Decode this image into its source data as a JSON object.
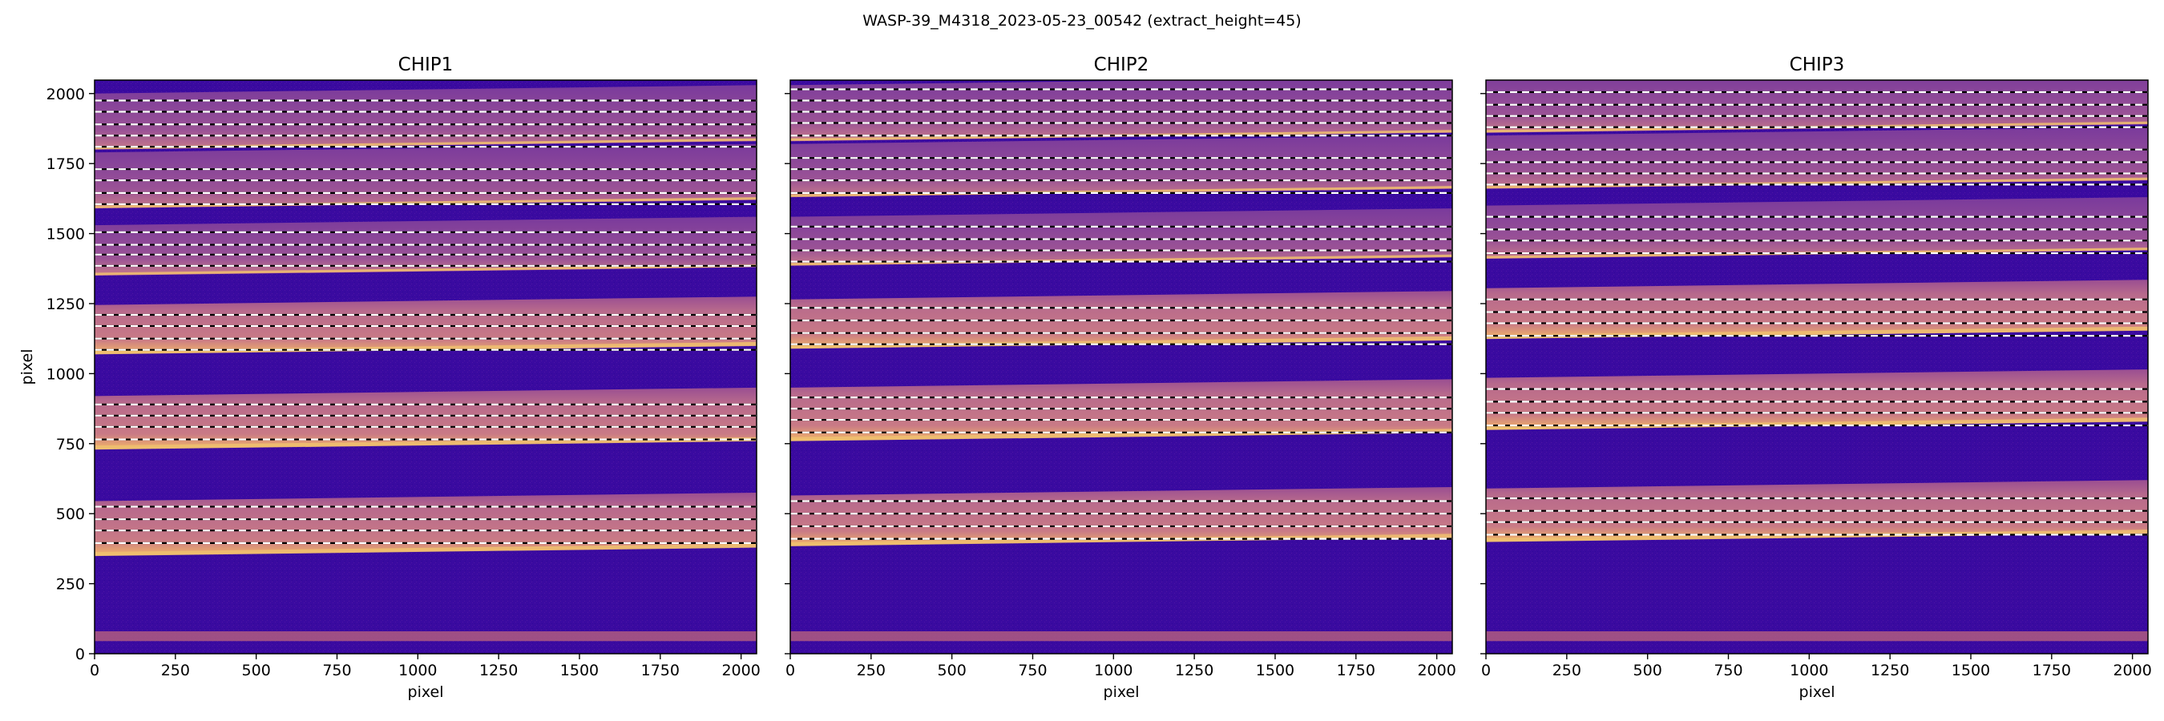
{
  "figure": {
    "suptitle": "WASP-39_M4318_2023-05-23_00542  (extract_height=45)"
  },
  "colors": {
    "background": "#3a0aa0",
    "trace": "#c87a8c",
    "trace_edge": "#f0c070",
    "dashed_line": "#ffffff",
    "dash_gap": "#000000"
  },
  "chart_data": [
    {
      "type": "heatmap",
      "title": "CHIP1",
      "xlabel": "pixel",
      "ylabel": "pixel",
      "xlim": [
        0,
        2048
      ],
      "ylim": [
        0,
        2048
      ],
      "xticks": [
        0,
        250,
        500,
        750,
        1000,
        1250,
        1500,
        1750,
        2000
      ],
      "yticks": [
        0,
        250,
        500,
        750,
        1000,
        1250,
        1500,
        1750,
        2000
      ],
      "orders": [
        {
          "bottom": 350,
          "top": 545
        },
        {
          "bottom": 730,
          "top": 920
        },
        {
          "bottom": 1070,
          "top": 1245
        },
        {
          "bottom": 1350,
          "top": 1530
        },
        {
          "bottom": 1590,
          "top": 1790
        },
        {
          "bottom": 1800,
          "top": 2000
        }
      ],
      "extraction_lines": [
        395,
        440,
        480,
        525,
        765,
        810,
        850,
        890,
        1085,
        1125,
        1170,
        1210,
        1385,
        1425,
        1460,
        1505,
        1605,
        1645,
        1690,
        1730,
        1810,
        1850,
        1890,
        1935,
        1975
      ]
    },
    {
      "type": "heatmap",
      "title": "CHIP2",
      "xlabel": "pixel",
      "ylabel": "",
      "xlim": [
        0,
        2048
      ],
      "ylim": [
        0,
        2048
      ],
      "xticks": [
        0,
        250,
        500,
        750,
        1000,
        1250,
        1500,
        1750,
        2000
      ],
      "yticks": [
        0,
        250,
        500,
        750,
        1000,
        1250,
        1500,
        1750,
        2000
      ],
      "orders": [
        {
          "bottom": 385,
          "top": 565
        },
        {
          "bottom": 760,
          "top": 950
        },
        {
          "bottom": 1090,
          "top": 1265
        },
        {
          "bottom": 1385,
          "top": 1560
        },
        {
          "bottom": 1630,
          "top": 1820
        },
        {
          "bottom": 1830,
          "top": 2030
        }
      ],
      "extraction_lines": [
        410,
        455,
        500,
        545,
        790,
        835,
        875,
        915,
        1105,
        1145,
        1190,
        1235,
        1400,
        1440,
        1480,
        1525,
        1645,
        1690,
        1730,
        1770,
        1850,
        1895,
        1935,
        1975,
        2015
      ]
    },
    {
      "type": "heatmap",
      "title": "CHIP3",
      "xlabel": "pixel",
      "ylabel": "",
      "xlim": [
        0,
        2048
      ],
      "ylim": [
        0,
        2048
      ],
      "xticks": [
        0,
        250,
        500,
        750,
        1000,
        1250,
        1500,
        1750,
        2000
      ],
      "yticks": [
        0,
        250,
        500,
        750,
        1000,
        1250,
        1500,
        1750,
        2000
      ],
      "orders": [
        {
          "bottom": 400,
          "top": 590
        },
        {
          "bottom": 800,
          "top": 985
        },
        {
          "bottom": 1125,
          "top": 1305
        },
        {
          "bottom": 1410,
          "top": 1600
        },
        {
          "bottom": 1660,
          "top": 1850
        },
        {
          "bottom": 1860,
          "top": 2048
        }
      ],
      "extraction_lines": [
        425,
        470,
        510,
        555,
        815,
        860,
        900,
        945,
        1135,
        1180,
        1220,
        1265,
        1430,
        1475,
        1515,
        1560,
        1675,
        1715,
        1755,
        1800,
        1880,
        1920,
        1960,
        2005
      ]
    }
  ]
}
